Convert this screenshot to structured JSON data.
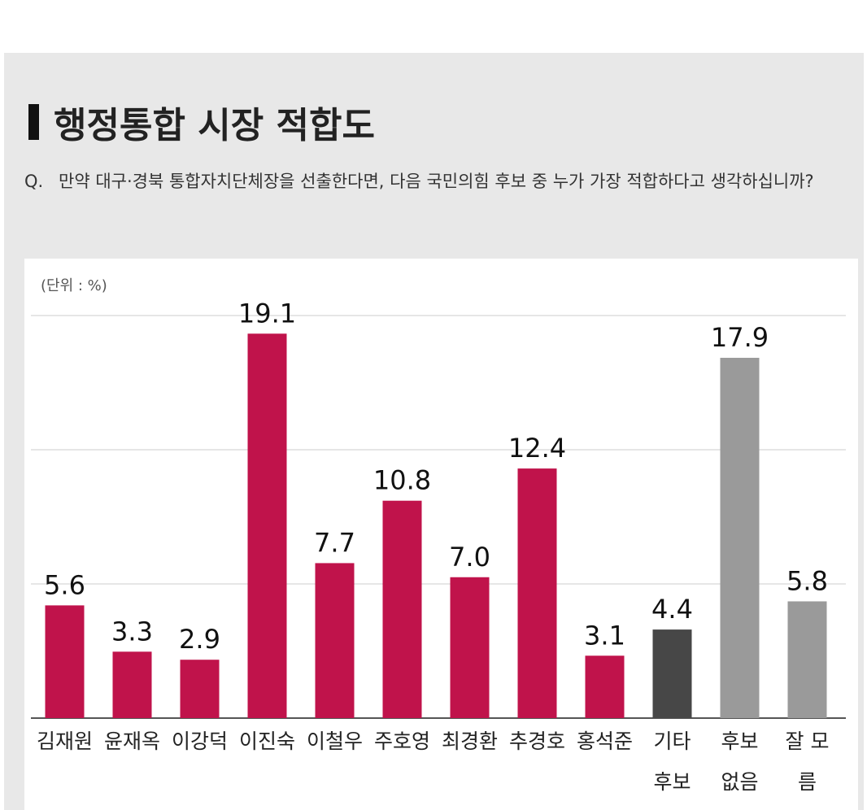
{
  "chart_data": {
    "type": "bar",
    "title": "행정통합 시장 적합도",
    "question_marker": "Q.",
    "question": "만약 대구·경북 통합자치단체장을 선출한다면, 다음 국민의힘 후보 중 누가 가장 적합하다고 생각하십니까?",
    "unit_label": "(단위 : %)",
    "categories": [
      "김재원",
      "윤재옥",
      "이강덕",
      "이진숙",
      "이철우",
      "주호영",
      "최경환",
      "추경호",
      "홍석준",
      "기타 후보",
      "후보 없음",
      "잘 모름"
    ],
    "values": [
      5.6,
      3.3,
      2.9,
      19.1,
      7.7,
      10.8,
      7.0,
      12.4,
      3.1,
      4.4,
      17.9,
      5.8
    ],
    "value_labels": [
      "5.6",
      "3.3",
      "2.9",
      "19.1",
      "7.7",
      "10.8",
      "7.0",
      "12.4",
      "3.1",
      "4.4",
      "17.9",
      "5.8"
    ],
    "colors": [
      "#c0134b",
      "#c0134b",
      "#c0134b",
      "#c0134b",
      "#c0134b",
      "#c0134b",
      "#c0134b",
      "#c0134b",
      "#c0134b",
      "#474747",
      "#9a9a9a",
      "#9a9a9a"
    ],
    "ylim": [
      0,
      20
    ],
    "grid": true
  }
}
